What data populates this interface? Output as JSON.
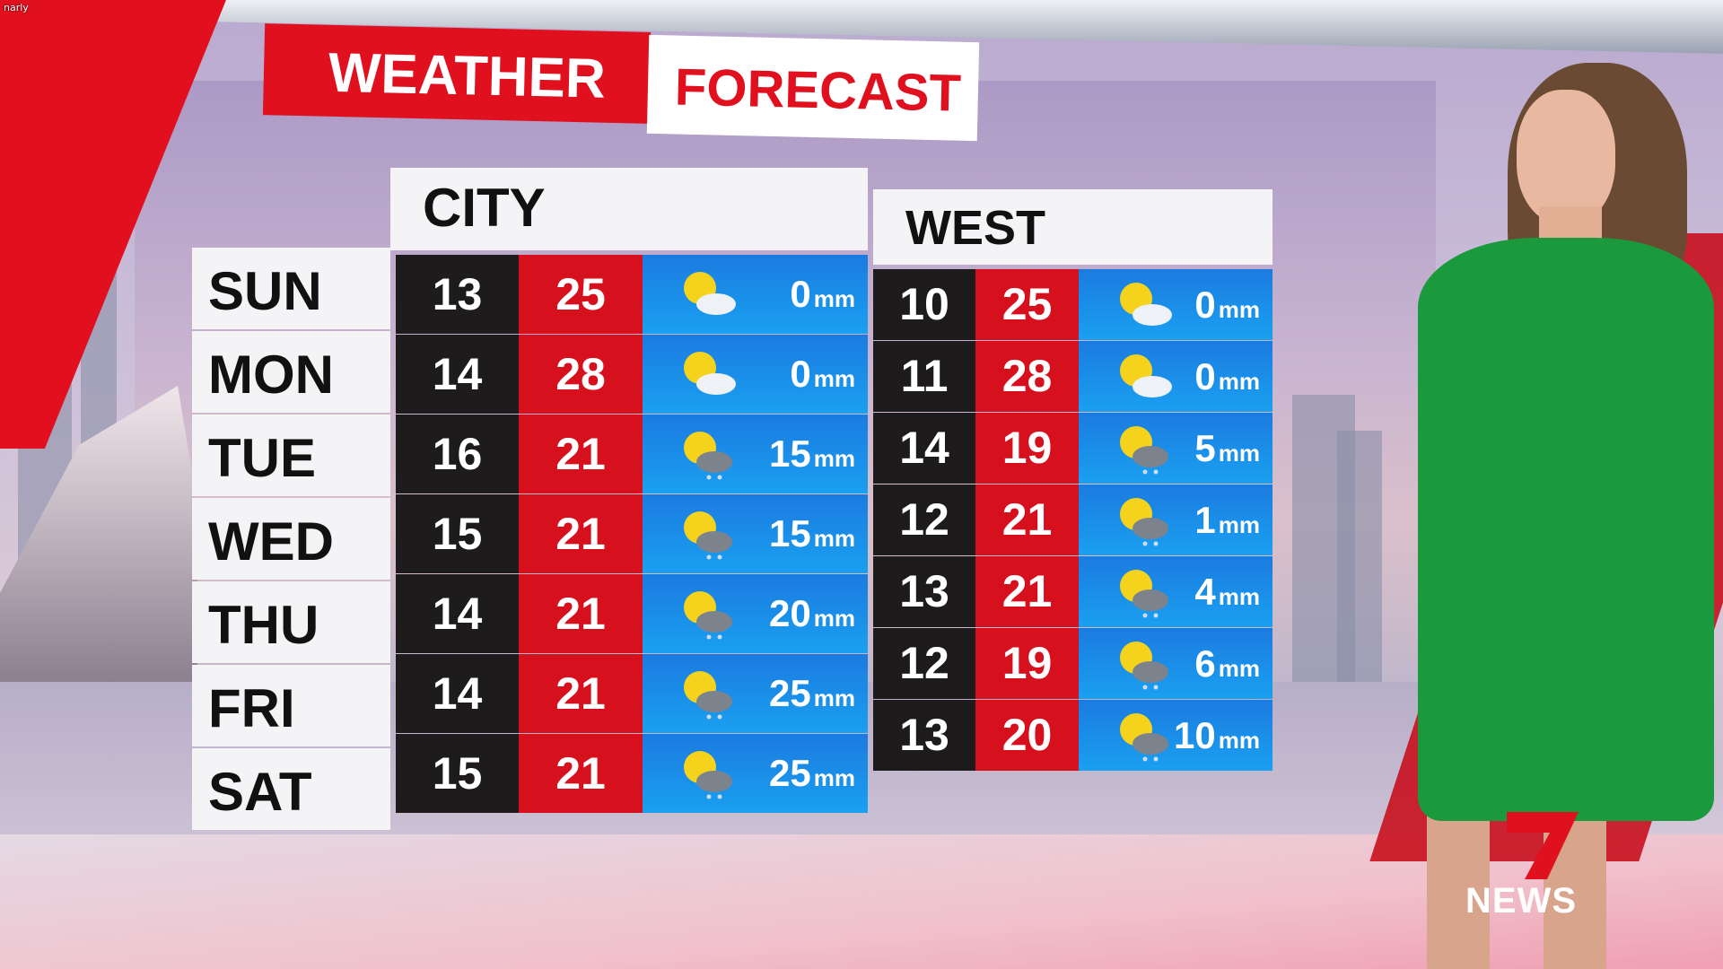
{
  "watermark": "narly",
  "title": {
    "part1": "WEATHER",
    "part2": "FORECAST"
  },
  "regions": [
    "CITY",
    "WEST"
  ],
  "days": [
    "SUN",
    "MON",
    "TUE",
    "WED",
    "THU",
    "FRI",
    "SAT"
  ],
  "rain_unit": "mm",
  "city": [
    {
      "low": "13",
      "high": "25",
      "icon": "partly-cloudy-icon",
      "rain": "0"
    },
    {
      "low": "14",
      "high": "28",
      "icon": "partly-cloudy-icon",
      "rain": "0"
    },
    {
      "low": "16",
      "high": "21",
      "icon": "showers-icon",
      "rain": "15"
    },
    {
      "low": "15",
      "high": "21",
      "icon": "showers-icon",
      "rain": "15"
    },
    {
      "low": "14",
      "high": "21",
      "icon": "showers-icon",
      "rain": "20"
    },
    {
      "low": "14",
      "high": "21",
      "icon": "showers-icon",
      "rain": "25"
    },
    {
      "low": "15",
      "high": "21",
      "icon": "showers-icon",
      "rain": "25"
    }
  ],
  "west": [
    {
      "low": "10",
      "high": "25",
      "icon": "partly-cloudy-icon",
      "rain": "0"
    },
    {
      "low": "11",
      "high": "28",
      "icon": "partly-cloudy-icon",
      "rain": "0"
    },
    {
      "low": "14",
      "high": "19",
      "icon": "showers-icon",
      "rain": "5"
    },
    {
      "low": "12",
      "high": "21",
      "icon": "showers-icon",
      "rain": "1"
    },
    {
      "low": "13",
      "high": "21",
      "icon": "showers-icon",
      "rain": "4"
    },
    {
      "low": "12",
      "high": "19",
      "icon": "showers-icon",
      "rain": "6"
    },
    {
      "low": "13",
      "high": "20",
      "icon": "showers-icon",
      "rain": "10"
    }
  ],
  "logo": {
    "number": "7",
    "text": "NEWS"
  },
  "colors": {
    "brand_red": "#e0101e",
    "low_bg": "#1d1b1c",
    "rain_bg": "#1a8ae8",
    "dress": "#1a9a3c"
  }
}
